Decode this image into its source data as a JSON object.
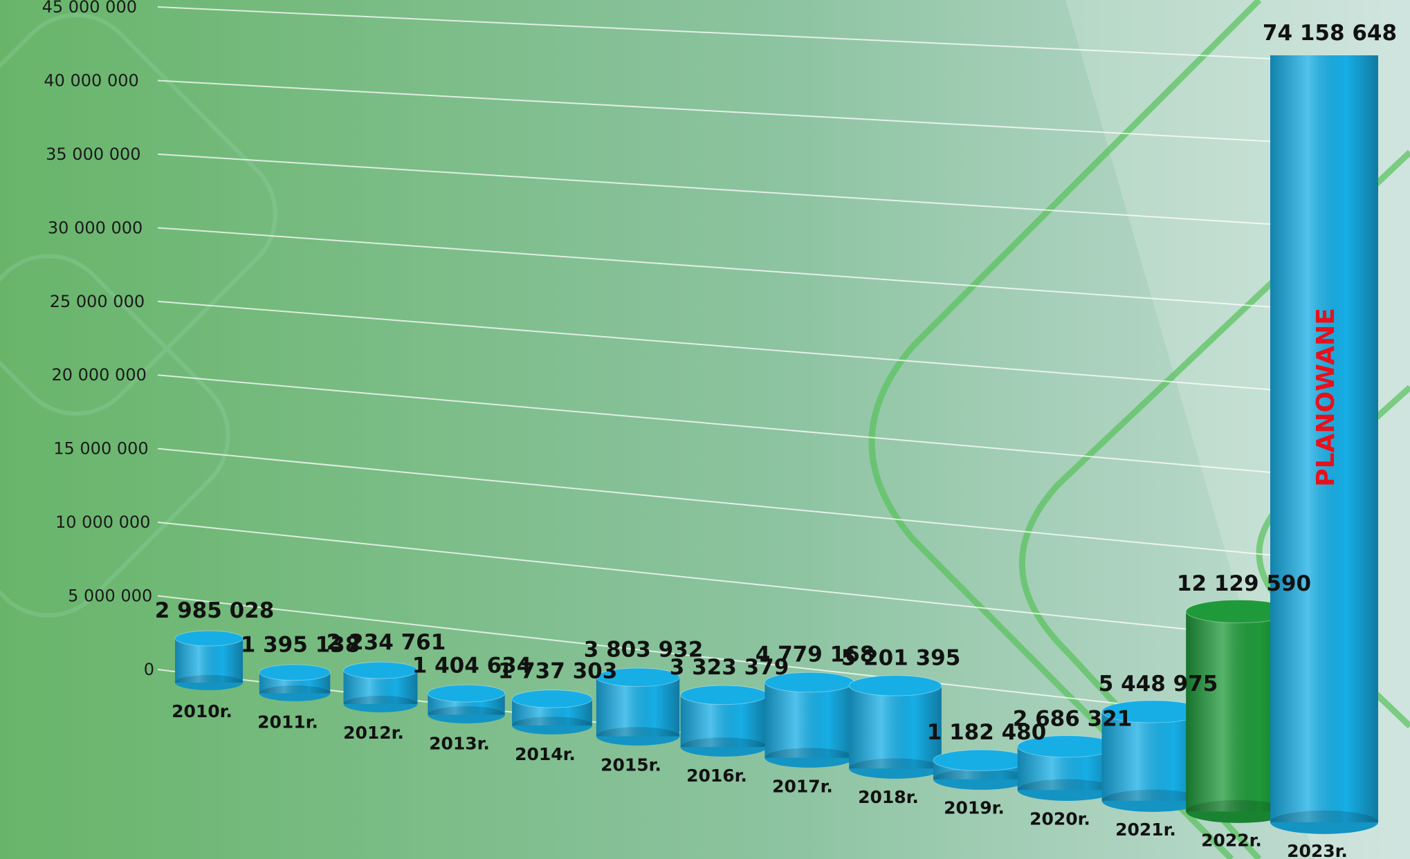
{
  "chart_data": {
    "type": "bar",
    "categories": [
      "2010r.",
      "2011r.",
      "2012r.",
      "2013r.",
      "2014r.",
      "2015r.",
      "2016r.",
      "2017r.",
      "2018r.",
      "2019r.",
      "2020r.",
      "2021r.",
      "2022r.",
      "2023r."
    ],
    "values": [
      2985028,
      1395138,
      2234761,
      1404634,
      1737303,
      3803932,
      3323379,
      4779168,
      5201395,
      1182480,
      2686321,
      5448975,
      12129590,
      74158648
    ],
    "value_labels": [
      "2 985 028",
      "1 395 138",
      "2 234 761",
      "1 404 634",
      "1 737 303",
      "3 803 932",
      "3 323 379",
      "4 779 168",
      "5 201 395",
      "1 182 480",
      "2 686 321",
      "5 448 975",
      "12 129 590",
      "74 158 648"
    ],
    "colors": [
      "#17aee6",
      "#17aee6",
      "#17aee6",
      "#17aee6",
      "#17aee6",
      "#17aee6",
      "#17aee6",
      "#17aee6",
      "#17aee6",
      "#17aee6",
      "#17aee6",
      "#17aee6",
      "#1f9a3a",
      "#17aee6"
    ],
    "annotation": "PLANOWANE",
    "ylim": [
      0,
      45000000
    ],
    "yticks": [
      0,
      {
        "value": 5000000,
        "label": "5 000 000"
      },
      {
        "value": 10000000,
        "label": "10 000 000"
      },
      {
        "value": 15000000,
        "label": "15 000 000"
      },
      {
        "value": 20000000,
        "label": "20 000 000"
      },
      {
        "value": 25000000,
        "label": "25 000 000"
      },
      {
        "value": 30000000,
        "label": "30 000 000"
      },
      {
        "value": 35000000,
        "label": "35 000 000"
      },
      {
        "value": 40000000,
        "label": "40 000 000"
      },
      {
        "value": 45000000,
        "label": "45 000 000"
      }
    ],
    "grid": true
  }
}
